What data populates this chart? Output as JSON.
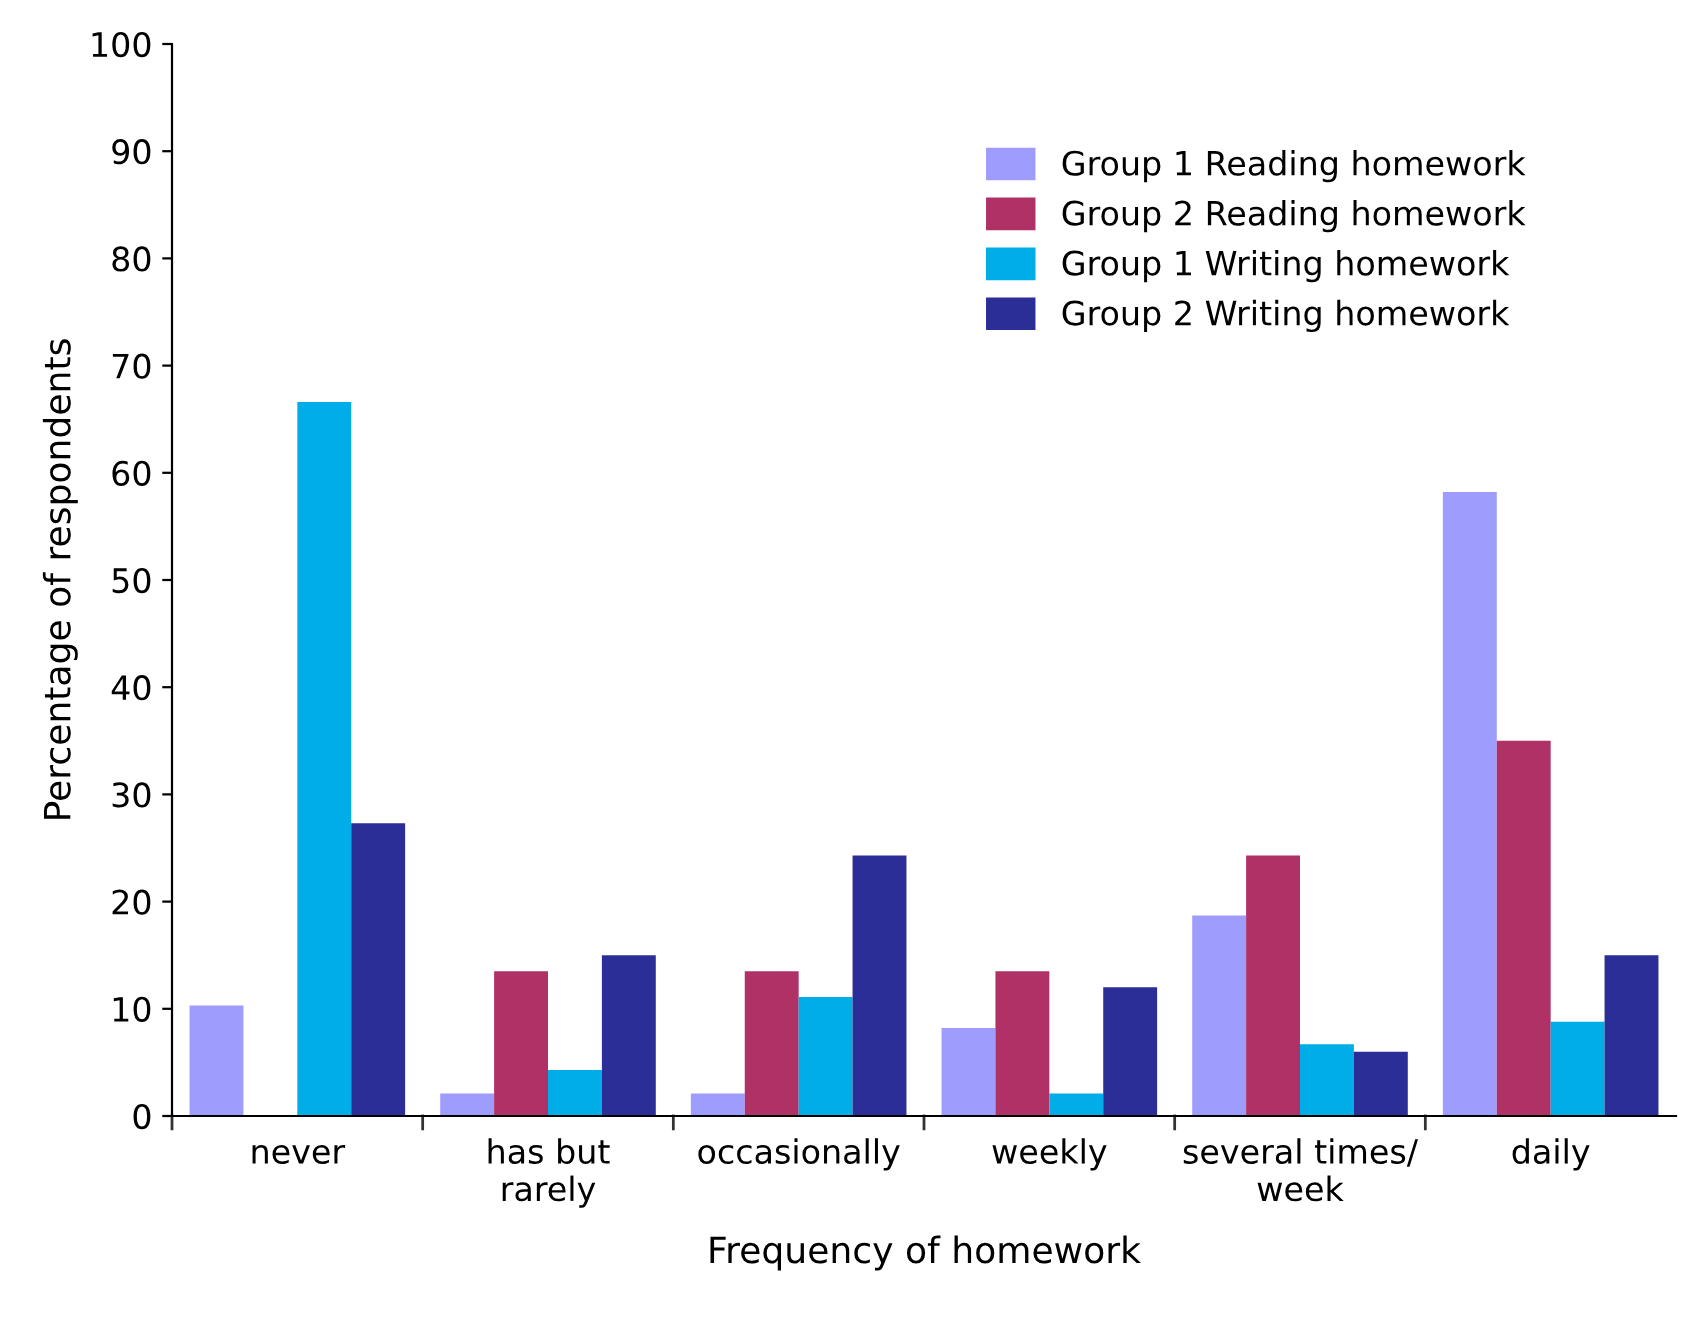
{
  "chart_data": {
    "type": "bar",
    "xlabel": "Frequency of homework",
    "ylabel": "Percentage of respondents",
    "categories": [
      "never",
      "has but\nrarely",
      "occasionally",
      "weekly",
      "several times/\nweek",
      "daily"
    ],
    "series": [
      {
        "name": "Group 1 Reading homework",
        "color": "#9e9cfc",
        "values": [
          10.3,
          2.1,
          2.1,
          8.2,
          18.7,
          58.2
        ]
      },
      {
        "name": "Group 2 Reading homework",
        "color": "#b03166",
        "values": [
          0,
          13.5,
          13.5,
          13.5,
          24.3,
          35.0
        ]
      },
      {
        "name": "Group 1 Writing homework",
        "color": "#00ade6",
        "values": [
          66.6,
          4.3,
          11.1,
          2.1,
          6.7,
          8.8
        ]
      },
      {
        "name": "Group 2 Writing homework",
        "color": "#2a2e96",
        "values": [
          27.3,
          15.0,
          24.3,
          12.0,
          6.0,
          15.0
        ]
      }
    ],
    "ylim": [
      0,
      100
    ],
    "yticks": [
      0,
      10,
      20,
      30,
      40,
      50,
      60,
      70,
      80,
      90,
      100
    ],
    "grid": false,
    "legend": "top right"
  }
}
